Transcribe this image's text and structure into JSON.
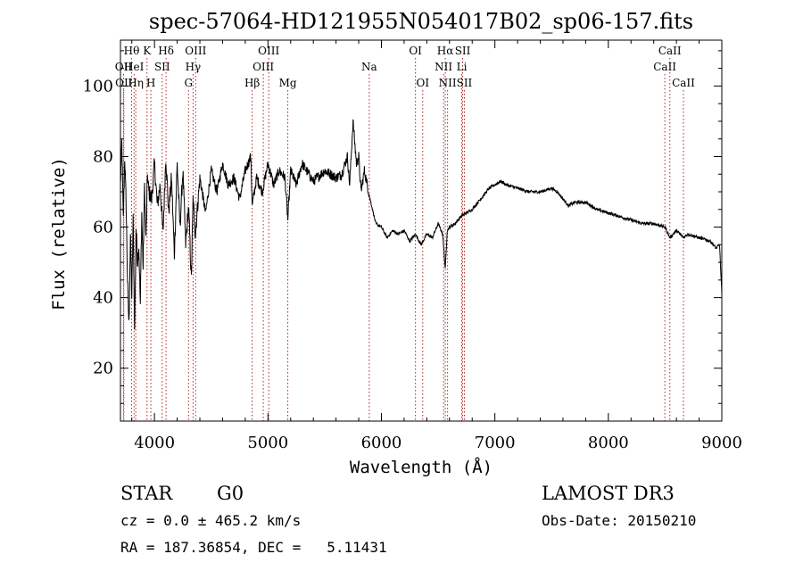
{
  "chart_data": {
    "type": "line",
    "title": "spec-57064-HD121955N054017B02_sp06-157.fits",
    "xlabel": "Wavelength (Å)",
    "ylabel": "Flux (relative)",
    "xlim": [
      3700,
      9000
    ],
    "ylim": [
      5,
      113
    ],
    "xticks": [
      4000,
      5000,
      6000,
      7000,
      8000,
      9000
    ],
    "yticks": [
      20,
      40,
      60,
      80,
      100
    ],
    "grid": false,
    "series": [
      {
        "name": "flux",
        "x": [
          3700,
          3712,
          3725,
          3738,
          3750,
          3762,
          3775,
          3788,
          3800,
          3812,
          3825,
          3838,
          3850,
          3862,
          3875,
          3888,
          3900,
          3912,
          3925,
          3938,
          3950,
          3975,
          4000,
          4025,
          4050,
          4075,
          4100,
          4125,
          4150,
          4175,
          4200,
          4225,
          4250,
          4275,
          4300,
          4325,
          4340,
          4360,
          4400,
          4450,
          4500,
          4550,
          4600,
          4650,
          4700,
          4750,
          4800,
          4850,
          4861,
          4900,
          4950,
          5000,
          5050,
          5100,
          5150,
          5175,
          5200,
          5250,
          5300,
          5400,
          5500,
          5600,
          5650,
          5700,
          5720,
          5750,
          5780,
          5800,
          5820,
          5850,
          5900,
          5950,
          6000,
          6050,
          6100,
          6150,
          6200,
          6250,
          6300,
          6350,
          6400,
          6450,
          6500,
          6540,
          6563,
          6580,
          6600,
          6650,
          6700,
          6750,
          6800,
          6850,
          6900,
          6950,
          7000,
          7050,
          7100,
          7200,
          7300,
          7400,
          7500,
          7550,
          7600,
          7650,
          7700,
          7800,
          7900,
          8000,
          8100,
          8200,
          8300,
          8400,
          8500,
          8542,
          8600,
          8662,
          8700,
          8800,
          8900,
          8950,
          8980,
          9000
        ],
        "values": [
          72,
          84,
          62,
          80,
          66,
          45,
          32,
          58,
          40,
          62,
          30,
          60,
          50,
          55,
          38,
          64,
          48,
          72,
          56,
          75,
          70,
          68,
          78,
          66,
          72,
          58,
          80,
          64,
          74,
          52,
          78,
          60,
          76,
          55,
          66,
          45,
          68,
          58,
          74,
          64,
          76,
          70,
          78,
          72,
          74,
          68,
          76,
          80,
          66,
          74,
          70,
          78,
          72,
          76,
          74,
          62,
          76,
          72,
          78,
          73,
          76,
          74,
          75,
          80,
          72,
          90,
          78,
          80,
          70,
          76,
          68,
          61,
          60,
          57,
          59,
          58,
          59,
          56,
          58,
          55,
          58,
          57,
          61,
          58,
          48,
          59,
          60,
          61,
          63,
          64,
          65,
          67,
          69,
          71,
          72,
          73,
          72,
          71,
          70,
          70,
          71,
          70,
          68,
          66,
          67,
          67,
          65,
          64,
          63,
          62,
          61,
          61,
          60,
          57,
          59,
          57,
          58,
          57,
          56,
          54,
          55,
          41
        ]
      }
    ],
    "spectral_lines": [
      {
        "label": "Hθ",
        "x": 3798,
        "row": 0
      },
      {
        "label": "OII",
        "x": 3727,
        "row": 1
      },
      {
        "label": "OII",
        "x": 3730,
        "row": 2
      },
      {
        "label": "HeI",
        "x": 3820,
        "row": 1
      },
      {
        "label": "Hη",
        "x": 3835,
        "row": 2
      },
      {
        "label": "K",
        "x": 3934,
        "row": 0
      },
      {
        "label": "SII",
        "x": 4068,
        "row": 1
      },
      {
        "label": "H",
        "x": 3968,
        "row": 2
      },
      {
        "label": "Hδ",
        "x": 4102,
        "row": 0
      },
      {
        "label": "OIII",
        "x": 4363,
        "row": 0
      },
      {
        "label": "Hγ",
        "x": 4340,
        "row": 1
      },
      {
        "label": "G",
        "x": 4300,
        "row": 2
      },
      {
        "label": "Hβ",
        "x": 4861,
        "row": 2
      },
      {
        "label": "OIII",
        "x": 5007,
        "row": 0
      },
      {
        "label": "OIII",
        "x": 4959,
        "row": 1
      },
      {
        "label": "Mg",
        "x": 5175,
        "row": 2
      },
      {
        "label": "Na",
        "x": 5893,
        "row": 1
      },
      {
        "label": "OI",
        "x": 6300,
        "row": 0
      },
      {
        "label": "OI",
        "x": 6364,
        "row": 2
      },
      {
        "label": "Hα",
        "x": 6563,
        "row": 0
      },
      {
        "label": "SII",
        "x": 6716,
        "row": 0
      },
      {
        "label": "NII",
        "x": 6548,
        "row": 1
      },
      {
        "label": "Li",
        "x": 6708,
        "row": 1
      },
      {
        "label": "NII",
        "x": 6583,
        "row": 2
      },
      {
        "label": "SII",
        "x": 6731,
        "row": 2
      },
      {
        "label": "CaII",
        "x": 8542,
        "row": 0
      },
      {
        "label": "CaII",
        "x": 8498,
        "row": 1
      },
      {
        "label": "CaII",
        "x": 8662,
        "row": 2
      }
    ]
  },
  "info": {
    "object_class": "STAR",
    "subclass": "G0",
    "survey": "LAMOST DR3",
    "redshift": "cz = 0.0 ± 465.2 km/s",
    "obs_date": "Obs-Date: 20150210",
    "coords": "RA = 187.36854, DEC =   5.11431"
  }
}
